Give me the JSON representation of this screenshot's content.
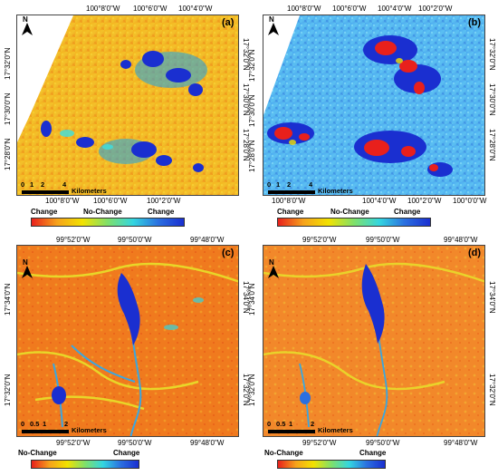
{
  "panels": {
    "a": {
      "label": "(a)",
      "legend_left": "Change",
      "legend_mid": "No-Change",
      "legend_right": "Change"
    },
    "b": {
      "label": "(b)",
      "legend_left": "Change",
      "legend_mid": "No-Change",
      "legend_right": "Change"
    },
    "c": {
      "label": "(c)",
      "legend_left": "No-Change",
      "legend_right": "Change"
    },
    "d": {
      "label": "(d)",
      "legend_left": "No-Change",
      "legend_right": "Change"
    }
  },
  "north": "N",
  "top_coords": {
    "x_ticks": [
      "100°8'0\"W",
      "100°6'0\"W",
      "100°4'0\"W",
      "100°2'0\"W",
      "100°0'0\"W"
    ],
    "x_ticks_bottom": [
      "100°8'0\"W",
      "100°6'0\"W",
      "100°4'0\"W",
      "100°2'0\"W",
      "100°0'0\"W"
    ],
    "y_ticks": [
      "17°32'0\"N",
      "17°30'0\"N",
      "17°28'0\"N",
      "17°26'0\"N"
    ],
    "scale_labels": [
      "0",
      "1",
      "2",
      "4"
    ],
    "scale_unit": "Kilometers"
  },
  "bottom_coords": {
    "x_ticks": [
      "99°52'0\"W",
      "99°50'0\"W",
      "99°48'0\"W"
    ],
    "y_ticks": [
      "17°34'0\"N",
      "17°32'0\"N"
    ],
    "scale_labels": [
      "0",
      "0.5",
      "1",
      "2"
    ],
    "scale_unit": "Kilometers"
  },
  "colors": {
    "change_red": "#e8201c",
    "yellow": "#f2e200",
    "cyan": "#33d6e0",
    "blue": "#1a2fd0"
  }
}
